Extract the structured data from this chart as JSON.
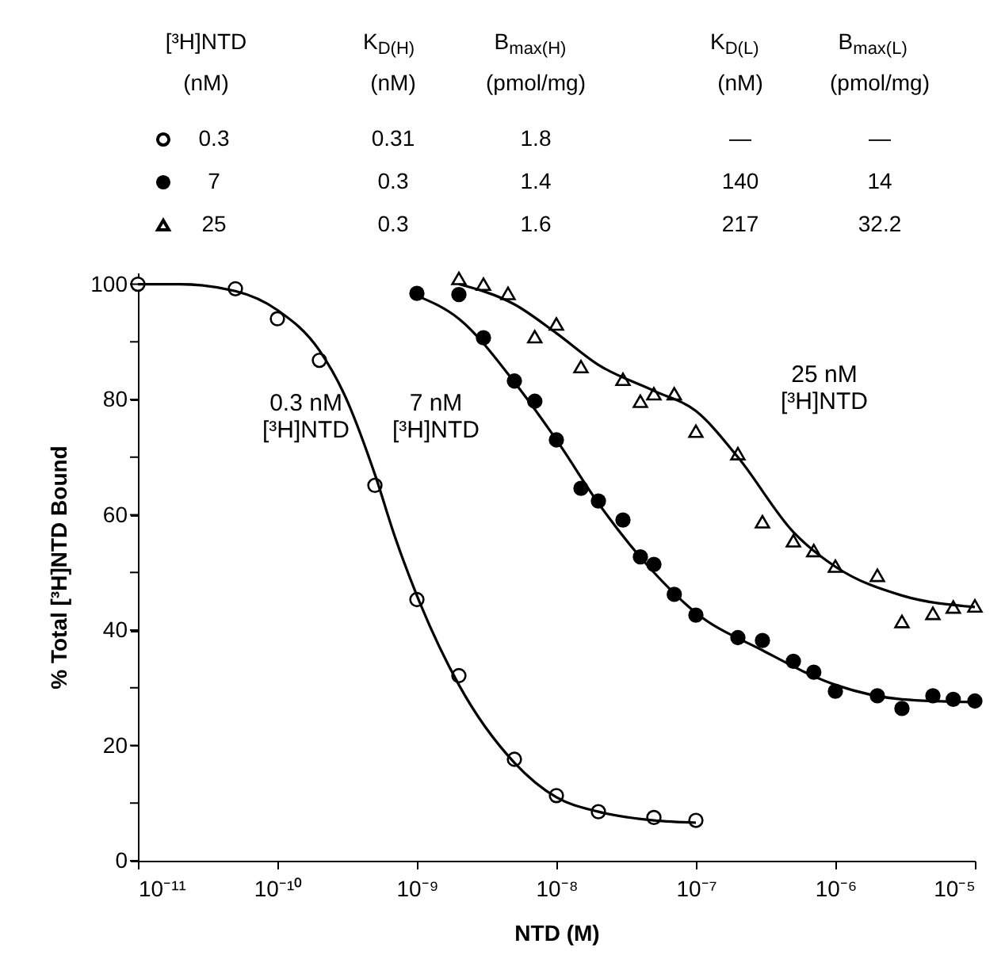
{
  "chart_data": {
    "type": "scatter",
    "xlabel": "NTD (M)",
    "ylabel": "% Total [³H]NTD Bound",
    "legend_title": "[³H]NTD\n(nM)",
    "legend": "top",
    "log": "x",
    "xlim": [
      1e-11,
      1e-05
    ],
    "xticks": [
      {
        "value": 1e-11,
        "label": "10⁻¹¹"
      },
      {
        "value": 1e-10,
        "label": "10⁻¹⁰"
      },
      {
        "value": 1e-09,
        "label": "10⁻⁹"
      },
      {
        "value": 1e-08,
        "label": "10⁻⁸"
      },
      {
        "value": 1e-07,
        "label": "10⁻⁷"
      },
      {
        "value": 1e-06,
        "label": "10⁻⁶"
      },
      {
        "value": 1e-05,
        "label": "10⁻⁵"
      }
    ],
    "ylim": [
      0,
      102
    ],
    "yticks": [
      0,
      {
        "value": 10,
        "label": null
      },
      20,
      {
        "value": 30,
        "label": null
      },
      40,
      {
        "value": 50,
        "label": null
      },
      60,
      {
        "value": 70,
        "label": null
      },
      80,
      {
        "value": 90,
        "label": null
      },
      100
    ],
    "grid": false,
    "series": [
      {
        "name": "0.3",
        "marker": "circle",
        "color": "#ffffff",
        "x": [
          1e-11,
          5e-11,
          1e-10,
          2e-10,
          5e-10,
          1e-09,
          2e-09,
          5e-09,
          1e-08,
          2e-08,
          5e-08,
          1e-07
        ],
        "values": [
          100,
          99.2,
          94,
          86.8,
          65.1,
          45.3,
          32.1,
          17.6,
          11.3,
          8.5,
          7.5,
          7
        ]
      },
      {
        "name": "7",
        "marker": "circle",
        "color": "#000000",
        "x": [
          1e-09,
          2e-09,
          3e-09,
          5e-09,
          7e-09,
          1e-08,
          1.5e-08,
          2e-08,
          3e-08,
          4e-08,
          5e-08,
          7e-08,
          1e-07,
          2e-07,
          3e-07,
          5e-07,
          7e-07,
          1e-06,
          2e-06,
          3e-06,
          5e-06,
          7e-06,
          1e-05
        ],
        "values": [
          98.4,
          98.2,
          90.7,
          83.2,
          79.7,
          73,
          64.6,
          62.4,
          59.1,
          52.7,
          51.4,
          46.2,
          42.6,
          38.7,
          38.2,
          34.6,
          32.7,
          29.4,
          28.6,
          26.4,
          28.6,
          28,
          27.7
        ]
      },
      {
        "name": "25",
        "marker": "triangle",
        "color": "#ffffff",
        "x": [
          2e-09,
          3e-09,
          4.5e-09,
          7e-09,
          1e-08,
          1.5e-08,
          3e-08,
          4e-08,
          5e-08,
          7e-08,
          1e-07,
          2e-07,
          3e-07,
          5e-07,
          7e-07,
          1e-06,
          2e-06,
          3e-06,
          5e-06,
          7e-06,
          1e-05
        ],
        "values": [
          101,
          100,
          98.4,
          90.9,
          93.1,
          85.7,
          83.5,
          79.7,
          81,
          81,
          74.5,
          70.6,
          58.8,
          55.5,
          53.8,
          51.1,
          49.5,
          41.5,
          42.9,
          44,
          44.2
        ]
      },
      {
        "type": "line",
        "marker": "none",
        "color": "#000000",
        "x": [
          1e-11,
          2e-11,
          5e-11,
          1e-10,
          2e-10,
          3e-10,
          5e-10,
          7e-10,
          1e-09,
          2e-09,
          5e-09,
          1e-08,
          2e-08,
          5e-08,
          1e-07
        ],
        "values": [
          100,
          100,
          98.8,
          95.5,
          88.5,
          81,
          67,
          56,
          46,
          30.5,
          17,
          11,
          8.5,
          7,
          6.6
        ]
      },
      {
        "type": "line",
        "marker": "none",
        "color": "#000000",
        "x": [
          1e-09,
          2e-09,
          5e-09,
          1e-08,
          2e-08,
          5e-08,
          1e-07,
          3e-07,
          1e-06,
          3e-06,
          1e-05
        ],
        "values": [
          98,
          94,
          83,
          73,
          62,
          50,
          43,
          36.5,
          30.5,
          28,
          27.5
        ]
      },
      {
        "type": "line",
        "marker": "none",
        "color": "#000000",
        "x": [
          2e-09,
          5e-09,
          1e-08,
          2e-08,
          5e-08,
          1e-07,
          2e-07,
          5e-07,
          1e-06,
          3e-06,
          1e-05
        ],
        "values": [
          100,
          96.5,
          91.5,
          86,
          81.5,
          78,
          70,
          57,
          51,
          46,
          44
        ]
      }
    ],
    "annotations": [
      "0.3 nM\n[³H]NTD",
      "7 nM\n[³H]NTD",
      "25 nM\n[³H]NTD",
      "K$_{D(H)}$\n(nM)",
      "B$_{max(H)}$\n(pmol/mg)",
      "K$_{D(L)}$\n(nM)",
      "B$_{max(L)}$\n(pmol/mg)",
      "0.31",
      "1.8",
      "—",
      "—",
      "0.3",
      "1.4",
      "140",
      "14",
      "0.3",
      "1.6",
      "217",
      "32.2"
    ]
  }
}
